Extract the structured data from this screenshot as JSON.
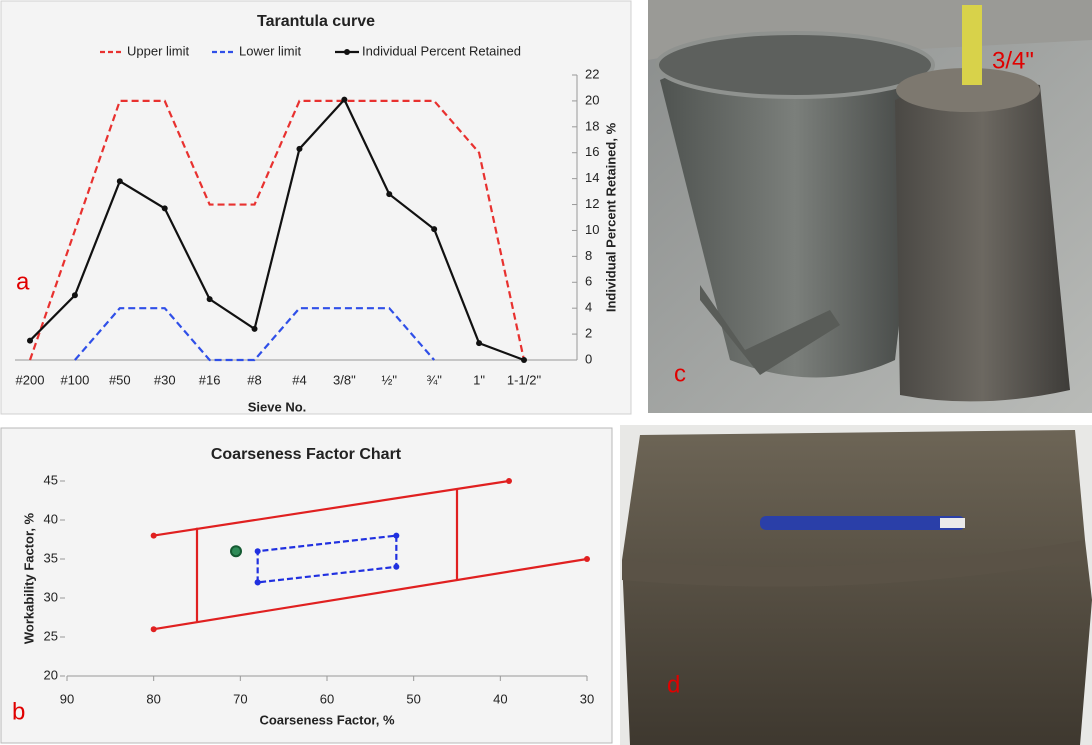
{
  "chart_data": [
    {
      "type": "line",
      "title": "Tarantula curve",
      "categories": [
        "#200",
        "#100",
        "#50",
        "#30",
        "#16",
        "#8",
        "#4",
        "3/8\"",
        "½\"",
        "¾\"",
        "1\"",
        "1-1/2\""
      ],
      "series": [
        {
          "name": "Upper limit",
          "color": "#e8312f",
          "dashed": true,
          "markers": false,
          "values": [
            0,
            10,
            20,
            20,
            12,
            12,
            20,
            20,
            20,
            20,
            16,
            0
          ]
        },
        {
          "name": "Lower limit",
          "color": "#2f4fe8",
          "dashed": true,
          "markers": false,
          "values": [
            null,
            0,
            4,
            4,
            0,
            0,
            4,
            4,
            4,
            0,
            null,
            null
          ]
        },
        {
          "name": "Individual Percent Retained",
          "color": "#111111",
          "dashed": false,
          "markers": true,
          "values": [
            1.5,
            5,
            13.8,
            11.7,
            4.7,
            2.4,
            16.3,
            20.1,
            12.8,
            10.1,
            1.3,
            0
          ]
        }
      ],
      "xlabel": "Sieve No.",
      "ylabel": "Individual Percent Retained, %",
      "ylim": [
        0,
        22
      ],
      "yticks": [
        0,
        2,
        4,
        6,
        8,
        10,
        12,
        14,
        16,
        18,
        20,
        22
      ],
      "y_axis_side": "right",
      "legend": "top"
    },
    {
      "type": "line",
      "title": "Coarseness Factor Chart",
      "series": [
        {
          "color": "#e02020",
          "dashed": false,
          "markers": true,
          "x": [
            80,
            39
          ],
          "values": [
            38,
            45
          ]
        },
        {
          "color": "#e02020",
          "dashed": false,
          "markers": true,
          "x": [
            80,
            30
          ],
          "values": [
            26,
            35
          ]
        },
        {
          "color": "#e02020",
          "dashed": false,
          "markers": false,
          "x": [
            75,
            75
          ],
          "values": [
            27,
            39
          ]
        },
        {
          "color": "#e02020",
          "dashed": false,
          "markers": false,
          "x": [
            45,
            45
          ],
          "values": [
            32.3,
            44
          ]
        },
        {
          "color": "#2030e0",
          "dashed": true,
          "markers": true,
          "x": [
            68,
            68,
            52,
            52,
            68
          ],
          "values": [
            32,
            36,
            38,
            34,
            32
          ]
        },
        {
          "color": "#2e8b57",
          "dashed": false,
          "markers": true,
          "point_only": true,
          "x": [
            70.5
          ],
          "values": [
            36
          ]
        }
      ],
      "xlabel": "Coarseness Factor, %",
      "ylabel": "Workability Factor, %",
      "xlim": [
        90,
        30
      ],
      "xticks": [
        90,
        80,
        70,
        60,
        50,
        40,
        30
      ],
      "ylim": [
        20,
        45
      ],
      "yticks": [
        20,
        25,
        30,
        35,
        40,
        45
      ],
      "y_axis_side": "left"
    }
  ],
  "panel_labels": [
    "a",
    "b",
    "c",
    "d"
  ],
  "photo_annotation": "3/4\""
}
